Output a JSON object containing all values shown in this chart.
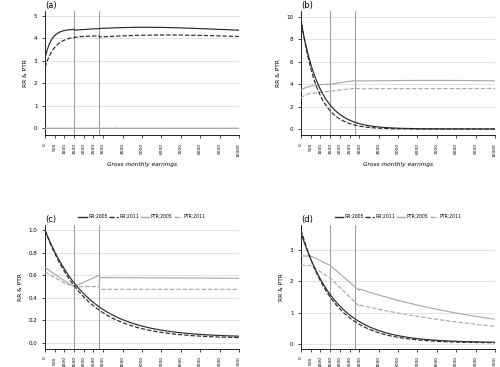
{
  "vline1": 1500,
  "vline2": 2800,
  "panels": {
    "a": {
      "title": "(a)",
      "ylabel": "RR & PTR",
      "xlabel": "Gross monthly earnings",
      "ylim": [
        -0.3,
        5.2
      ],
      "yticks": [
        0,
        1,
        2,
        3,
        4,
        5
      ]
    },
    "b": {
      "title": "(b)",
      "ylabel": "RR & PTR",
      "xlabel": "Gross monthly earnings",
      "ylim": [
        -0.5,
        10.5
      ],
      "yticks": [
        0,
        2,
        4,
        6,
        8,
        10
      ]
    },
    "c": {
      "title": "(c)",
      "ylabel": "RR & PTR",
      "xlabel": "Gross monthly earnings",
      "ylim": [
        -0.05,
        1.05
      ],
      "yticks": [
        0,
        0.2,
        0.4,
        0.6,
        0.8,
        1.0
      ]
    },
    "d": {
      "title": "(d)",
      "ylabel": "RR & PTR",
      "xlabel": "Gross monthly earnings",
      "ylim": [
        -0.15,
        3.8
      ],
      "yticks": [
        0,
        1,
        2,
        3
      ]
    }
  },
  "colors": {
    "dark": "#2a2a2a",
    "light": "#aaaaaa",
    "vline": "#888888"
  },
  "xticks": [
    0,
    500,
    1000,
    1500,
    2000,
    2500,
    3000,
    4000,
    5000,
    6000,
    7000,
    8000,
    9000,
    10000
  ],
  "legend": [
    "RR:2005",
    "RR:2011",
    "PTR:2005",
    "PTR:2011"
  ]
}
